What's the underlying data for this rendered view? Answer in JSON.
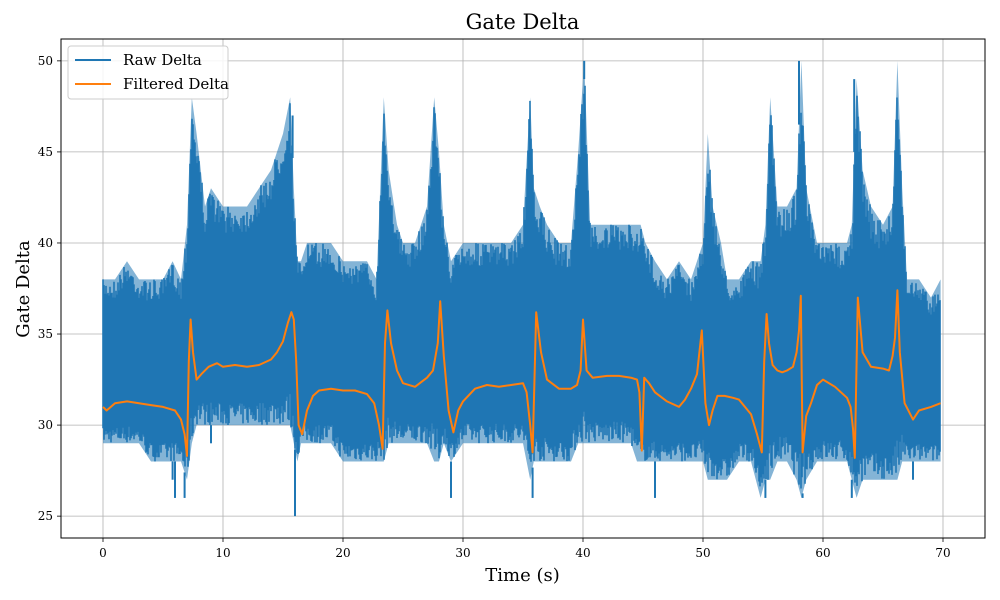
{
  "chart_data": {
    "type": "line",
    "title": "Gate Delta",
    "xlabel": "Time (s)",
    "ylabel": "Gate Delta",
    "xlim": [
      -3.5,
      73.5
    ],
    "ylim": [
      23.8,
      51.2
    ],
    "xticks": [
      0,
      10,
      20,
      30,
      40,
      50,
      60,
      70
    ],
    "yticks": [
      25,
      30,
      35,
      40,
      45,
      50
    ],
    "grid": true,
    "legend_position": "top-left",
    "colors": {
      "raw": "#1f77b4",
      "filtered": "#ff7f0e",
      "grid": "#b0b0b0"
    },
    "series": [
      {
        "name": "Raw Delta",
        "kind": "band",
        "x": [
          0,
          0.5,
          1,
          2,
          3,
          4,
          5,
          5.8,
          6.5,
          7.0,
          7.4,
          7.8,
          8.5,
          9,
          10,
          11,
          12,
          13,
          14,
          15,
          15.6,
          15.9,
          16.2,
          16.5,
          17,
          18,
          19,
          20,
          21,
          22,
          22.8,
          23.4,
          23.8,
          24.5,
          25,
          26,
          27,
          27.6,
          28.0,
          28.4,
          29,
          30,
          31,
          32,
          33,
          34,
          35,
          35.6,
          35.9,
          36.4,
          37,
          38,
          39,
          39.6,
          40.1,
          40.6,
          41,
          42,
          43,
          44,
          44.5,
          44.8,
          45.2,
          46,
          47,
          48,
          49,
          50,
          50.4,
          50.8,
          51.5,
          52,
          53,
          54,
          54.8,
          55.2,
          55.6,
          56.2,
          57,
          57.8,
          58.2,
          58.6,
          59.5,
          60,
          61,
          62,
          62.4,
          62.8,
          63.3,
          64,
          65,
          65.8,
          66.2,
          66.6,
          67,
          68,
          69,
          69.8
        ],
        "y_upper": [
          38,
          38,
          38,
          39,
          38,
          38,
          38,
          39,
          38,
          41,
          48,
          46,
          42,
          43,
          42,
          42,
          42,
          43,
          44,
          46,
          48,
          43,
          39,
          39,
          40,
          40,
          40,
          39,
          39,
          39,
          38,
          48,
          44,
          41,
          40,
          40,
          42,
          48,
          45,
          41,
          39,
          40,
          40,
          40,
          40,
          40,
          41,
          48,
          43,
          42,
          41,
          40,
          40,
          45,
          50,
          41,
          41,
          41,
          41,
          41,
          41,
          41,
          40,
          39,
          38,
          39,
          38,
          40,
          46,
          42,
          40,
          38,
          38,
          39,
          39,
          41,
          48,
          42,
          42,
          43,
          50,
          43,
          40,
          40,
          40,
          40,
          41,
          49,
          44,
          42,
          41,
          42,
          50,
          43,
          38,
          38,
          37,
          38
        ],
        "y_lower": [
          29,
          29,
          29,
          29,
          29,
          28,
          28,
          28,
          28,
          27,
          29,
          30,
          30,
          30,
          30,
          30,
          30,
          30,
          30,
          30,
          30,
          29,
          28,
          29,
          29,
          29,
          29,
          28,
          28,
          28,
          28,
          28,
          29,
          29,
          29,
          29,
          29,
          28,
          28,
          29,
          28,
          29,
          29,
          29,
          29,
          29,
          29,
          27,
          28,
          28,
          28,
          28,
          28,
          29,
          29,
          29,
          29,
          29,
          29,
          29,
          28,
          28,
          28,
          28,
          28,
          28,
          28,
          28,
          27,
          27,
          27,
          27,
          28,
          28,
          26,
          27,
          27,
          28,
          28,
          27,
          26,
          27,
          28,
          28,
          28,
          28,
          27,
          26,
          27,
          27,
          27,
          27,
          27,
          28,
          28,
          28,
          28,
          28
        ],
        "spikes": [
          [
            5.8,
            27
          ],
          [
            6.0,
            26
          ],
          [
            6.8,
            26
          ],
          [
            9.0,
            29
          ],
          [
            15.8,
            47
          ],
          [
            16.0,
            25
          ],
          [
            22.5,
            28
          ],
          [
            29.0,
            26
          ],
          [
            35.8,
            26
          ],
          [
            40.1,
            49
          ],
          [
            46.0,
            26
          ],
          [
            55.2,
            26
          ],
          [
            58.0,
            50
          ],
          [
            58.3,
            26
          ],
          [
            62.4,
            26
          ],
          [
            62.6,
            49
          ],
          [
            66.2,
            50
          ],
          [
            67.5,
            27
          ]
        ]
      },
      {
        "name": "Filtered Delta",
        "kind": "line",
        "x": [
          0,
          0.3,
          1,
          2,
          3,
          4,
          5,
          6,
          6.5,
          6.8,
          7.0,
          7.15,
          7.3,
          7.5,
          7.8,
          8.2,
          8.8,
          9.5,
          10,
          11,
          12,
          13,
          14,
          14.5,
          15,
          15.4,
          15.7,
          15.9,
          16.1,
          16.3,
          16.6,
          17,
          17.5,
          18,
          19,
          20,
          21,
          22,
          22.6,
          23.0,
          23.3,
          23.5,
          23.7,
          24.0,
          24.5,
          25,
          26,
          27,
          27.5,
          27.9,
          28.1,
          28.4,
          28.8,
          29.2,
          29.6,
          30,
          31,
          32,
          33,
          34,
          35,
          35.3,
          35.6,
          35.8,
          36.1,
          36.5,
          37,
          38,
          39,
          39.5,
          39.8,
          40.0,
          40.3,
          40.8,
          42,
          43,
          44,
          44.5,
          44.7,
          44.9,
          45.1,
          45.5,
          46,
          47,
          48,
          48.5,
          49,
          49.5,
          49.9,
          50.2,
          50.5,
          50.8,
          51.2,
          51.8,
          52.5,
          53,
          54,
          54.5,
          54.9,
          55.1,
          55.3,
          55.5,
          55.8,
          56.2,
          56.6,
          57,
          57.5,
          57.8,
          58.0,
          58.15,
          58.3,
          58.6,
          59,
          59.5,
          60,
          61,
          62,
          62.3,
          62.5,
          62.65,
          62.9,
          63.3,
          64,
          65,
          65.5,
          65.8,
          66.0,
          66.2,
          66.4,
          66.8,
          67.5,
          68,
          69,
          69.8
        ],
        "y": [
          31.0,
          30.8,
          31.2,
          31.3,
          31.2,
          31.1,
          31.0,
          30.8,
          30.3,
          29.5,
          28.3,
          33.5,
          35.8,
          34.0,
          32.5,
          32.8,
          33.2,
          33.4,
          33.2,
          33.3,
          33.2,
          33.3,
          33.6,
          34.0,
          34.6,
          35.6,
          36.2,
          35.8,
          33.5,
          30.0,
          29.5,
          30.8,
          31.6,
          31.9,
          32.0,
          31.9,
          31.9,
          31.7,
          31.2,
          30.0,
          28.7,
          34.5,
          36.3,
          34.5,
          33.0,
          32.3,
          32.1,
          32.6,
          33.0,
          34.5,
          36.8,
          33.8,
          30.8,
          29.6,
          30.8,
          31.3,
          32.0,
          32.2,
          32.1,
          32.2,
          32.3,
          31.8,
          30.0,
          28.5,
          36.2,
          34.0,
          32.5,
          32.0,
          32.0,
          32.2,
          33.0,
          35.8,
          33.0,
          32.6,
          32.7,
          32.7,
          32.6,
          32.5,
          31.8,
          28.6,
          32.6,
          32.3,
          31.8,
          31.3,
          31.0,
          31.4,
          32.0,
          32.8,
          35.2,
          31.2,
          30.0,
          30.8,
          31.6,
          31.6,
          31.5,
          31.4,
          30.6,
          29.5,
          28.5,
          33.5,
          36.1,
          34.5,
          33.3,
          33.0,
          32.9,
          33.0,
          33.2,
          34.0,
          35.2,
          37.1,
          28.5,
          30.5,
          31.2,
          32.2,
          32.5,
          32.1,
          31.5,
          31.0,
          29.8,
          28.2,
          37.0,
          34.0,
          33.2,
          33.1,
          33.0,
          33.8,
          34.8,
          37.4,
          34.0,
          31.2,
          30.3,
          30.8,
          31.0,
          31.2
        ]
      }
    ]
  }
}
